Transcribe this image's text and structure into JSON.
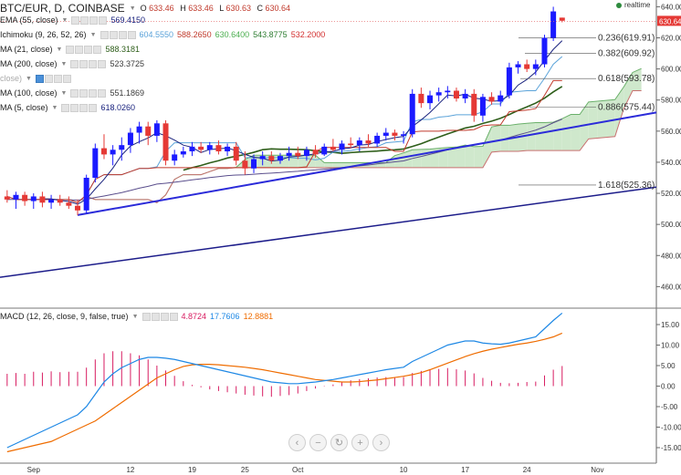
{
  "header": {
    "symbol": "BTC/EUR, D, COINBASE",
    "o_label": "O",
    "o_value": "633.46",
    "h_label": "H",
    "h_value": "633.46",
    "l_label": "L",
    "l_value": "630.63",
    "c_label": "C",
    "c_value": "630.64"
  },
  "realtime_label": "realtime",
  "indicators": [
    {
      "name": "EMA (55, close)",
      "values": [
        "569.4150"
      ],
      "colors": [
        "#1a237e"
      ]
    },
    {
      "name": "Ichimoku (9, 26, 52, 26)",
      "values": [
        "604.5550",
        "588.2650",
        "630.6400",
        "543.8775",
        "532.2000"
      ],
      "colors": [
        "#5ba3d9",
        "#c0392b",
        "#4caf50",
        "#2e7d32",
        "#d32f2f"
      ]
    },
    {
      "name": "MA (21, close)",
      "values": [
        "588.3181"
      ],
      "colors": [
        "#2e5e1a"
      ]
    },
    {
      "name": "MA (200, close)",
      "values": [
        "523.3725"
      ],
      "colors": [
        "#3a3a3a"
      ]
    },
    {
      "name": "close)",
      "values": [],
      "colors": []
    },
    {
      "name": "MA (100, close)",
      "values": [
        "551.1869"
      ],
      "colors": [
        "#3a3a3a"
      ]
    },
    {
      "name": "MA (5, close)",
      "values": [
        "618.0260"
      ],
      "colors": [
        "#1a237e"
      ]
    }
  ],
  "macd": {
    "name": "MACD (12, 26, close, 9, false, true)",
    "values": [
      "4.8724",
      "17.7606",
      "12.8881"
    ],
    "colors": [
      "#d81b60",
      "#1e88e5",
      "#ef6c00"
    ]
  },
  "chart_data": {
    "type": "candlestick",
    "x_tick_labels": [
      "Sep",
      "12",
      "19",
      "25",
      "Oct",
      "10",
      "17",
      "24",
      "Nov"
    ],
    "x_tick_positions": [
      3,
      14,
      21,
      27,
      33,
      45,
      52,
      59,
      67
    ],
    "price_axis": {
      "ticks": [
        "460.00",
        "480.00",
        "500.00",
        "520.00",
        "540.00",
        "560.00",
        "580.00",
        "600.00",
        "620.00",
        "640.00"
      ],
      "ylim": [
        452,
        642
      ]
    },
    "last_price_label": "630.64",
    "colors": {
      "up": "#1a1aff",
      "down": "#e53935",
      "cloud_bull": "#cfe8cc",
      "cloud_bear": "#f6c8c8",
      "trend": "#2b2bd9"
    },
    "candles": [
      [
        518,
        522,
        514,
        516
      ],
      [
        516,
        521,
        510,
        519
      ],
      [
        519,
        521,
        512,
        515
      ],
      [
        515,
        520,
        510,
        518
      ],
      [
        518,
        521,
        511,
        514
      ],
      [
        514,
        519,
        510,
        516
      ],
      [
        516,
        519,
        512,
        514
      ],
      [
        514,
        518,
        510,
        512
      ],
      [
        512,
        516,
        506,
        509
      ],
      [
        509,
        532,
        507,
        530
      ],
      [
        530,
        552,
        527,
        549
      ],
      [
        549,
        558,
        542,
        545
      ],
      [
        545,
        551,
        538,
        548
      ],
      [
        548,
        556,
        541,
        551
      ],
      [
        551,
        562,
        546,
        559
      ],
      [
        559,
        566,
        552,
        563
      ],
      [
        563,
        566,
        551,
        557
      ],
      [
        557,
        567,
        553,
        565
      ],
      [
        565,
        567,
        538,
        541
      ],
      [
        541,
        548,
        538,
        545
      ],
      [
        545,
        550,
        543,
        547
      ],
      [
        547,
        553,
        544,
        550
      ],
      [
        550,
        553,
        546,
        548
      ],
      [
        548,
        553,
        545,
        551
      ],
      [
        551,
        554,
        545,
        547
      ],
      [
        547,
        552,
        544,
        550
      ],
      [
        550,
        553,
        538,
        541
      ],
      [
        541,
        547,
        532,
        536
      ],
      [
        536,
        545,
        533,
        542
      ],
      [
        542,
        547,
        538,
        544
      ],
      [
        544,
        547,
        539,
        541
      ],
      [
        541,
        546,
        539,
        544
      ],
      [
        544,
        550,
        541,
        546
      ],
      [
        546,
        550,
        542,
        544
      ],
      [
        544,
        550,
        541,
        548
      ],
      [
        548,
        551,
        543,
        545
      ],
      [
        545,
        552,
        544,
        550
      ],
      [
        550,
        555,
        547,
        548
      ],
      [
        548,
        554,
        545,
        552
      ],
      [
        552,
        556,
        549,
        551
      ],
      [
        551,
        556,
        547,
        554
      ],
      [
        554,
        558,
        550,
        552
      ],
      [
        552,
        559,
        550,
        557
      ],
      [
        557,
        562,
        554,
        559
      ],
      [
        559,
        561,
        554,
        557
      ],
      [
        557,
        560,
        552,
        558
      ],
      [
        558,
        587,
        556,
        584
      ],
      [
        584,
        588,
        575,
        578
      ],
      [
        578,
        586,
        574,
        583
      ],
      [
        583,
        588,
        579,
        585
      ],
      [
        585,
        589,
        581,
        586
      ],
      [
        586,
        588,
        579,
        581
      ],
      [
        581,
        587,
        578,
        584
      ],
      [
        584,
        587,
        566,
        570
      ],
      [
        570,
        584,
        566,
        582
      ],
      [
        582,
        585,
        577,
        579
      ],
      [
        579,
        586,
        576,
        583
      ],
      [
        583,
        604,
        581,
        601
      ],
      [
        601,
        605,
        597,
        603
      ],
      [
        603,
        606,
        598,
        600
      ],
      [
        600,
        606,
        596,
        603
      ],
      [
        603,
        622,
        601,
        620
      ],
      [
        620,
        640,
        618,
        637
      ],
      [
        633,
        633,
        630,
        631
      ]
    ],
    "macd_axis": {
      "ticks": [
        "-15.00",
        "-10.00",
        "-5.00",
        "0.00",
        "5.00",
        "10.00",
        "15.00"
      ],
      "ylim": [
        -17,
        19
      ]
    },
    "macd_line": [
      -15,
      -14,
      -13,
      -12,
      -11,
      -10,
      -9,
      -8,
      -7,
      -5,
      -2,
      1,
      3,
      4.5,
      5.5,
      6.5,
      7,
      7,
      6.8,
      6.5,
      6,
      5.5,
      5,
      4.5,
      4,
      3.5,
      3,
      2.5,
      2,
      1.5,
      1,
      0.8,
      0.6,
      0.6,
      0.8,
      1,
      1.3,
      1.6,
      2,
      2.4,
      2.8,
      3.2,
      3.6,
      4,
      4.3,
      4.6,
      6,
      7,
      8,
      9,
      10,
      10.5,
      11,
      11,
      10.5,
      10.3,
      10.2,
      10.5,
      11,
      11.5,
      12,
      14,
      16,
      17.8
    ],
    "signal_line": [
      -16,
      -15.5,
      -15,
      -14.5,
      -14,
      -13.5,
      -12.5,
      -11.5,
      -10.5,
      -9.5,
      -8.5,
      -7,
      -5.5,
      -4,
      -2.5,
      -1,
      0.5,
      2,
      3,
      4,
      4.8,
      5.2,
      5.3,
      5.3,
      5.2,
      5,
      4.8,
      4.6,
      4.3,
      4,
      3.6,
      3.2,
      2.8,
      2.4,
      2,
      1.6,
      1.4,
      1.2,
      1,
      1,
      1.1,
      1.3,
      1.5,
      1.8,
      2.1,
      2.4,
      2.8,
      3.3,
      4,
      4.8,
      5.6,
      6.4,
      7.2,
      7.9,
      8.5,
      9,
      9.4,
      9.8,
      10.2,
      10.5,
      10.9,
      11.4,
      12,
      12.9
    ],
    "macd_histogram": [
      3,
      3.2,
      3,
      3.5,
      3.3,
      3.6,
      3.4,
      3.5,
      3.5,
      4.5,
      6.5,
      8,
      8.5,
      8.5,
      8,
      7.5,
      6.5,
      5,
      3.8,
      2.5,
      1.2,
      0.3,
      -0.3,
      -0.8,
      -1.2,
      -1.5,
      -1.8,
      -2.1,
      -2.3,
      -2.5,
      -2.6,
      -2.4,
      -2.2,
      -1.8,
      -1.2,
      -0.6,
      -0.1,
      0.4,
      1,
      1.4,
      1.7,
      1.9,
      2.1,
      2.2,
      2.2,
      2.2,
      3.2,
      3.7,
      4,
      4.2,
      4.4,
      4.1,
      3.8,
      3.1,
      2,
      1.3,
      0.8,
      0.7,
      0.8,
      1,
      1.1,
      2.6,
      4,
      4.9
    ]
  }
}
